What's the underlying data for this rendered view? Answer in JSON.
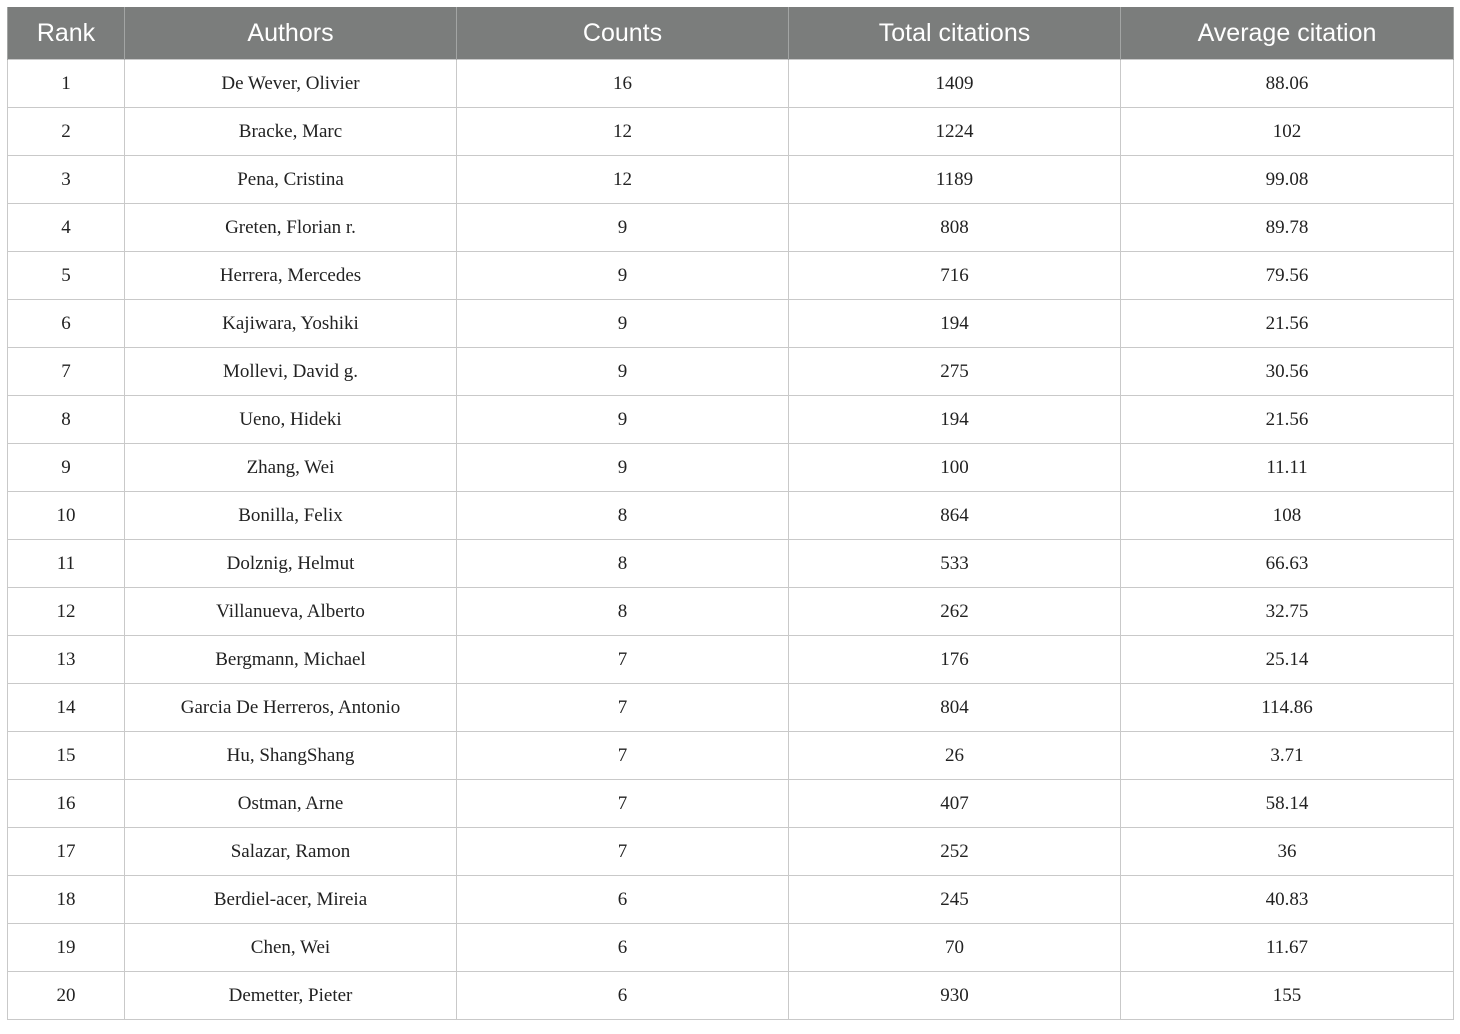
{
  "table": {
    "headers": [
      "Rank",
      "Authors",
      "Counts",
      "Total citations",
      "Average citation"
    ],
    "rows": [
      [
        "1",
        "De Wever, Olivier",
        "16",
        "1409",
        "88.06"
      ],
      [
        "2",
        "Bracke, Marc",
        "12",
        "1224",
        "102"
      ],
      [
        "3",
        "Pena, Cristina",
        "12",
        "1189",
        "99.08"
      ],
      [
        "4",
        "Greten, Florian r.",
        "9",
        "808",
        "89.78"
      ],
      [
        "5",
        "Herrera, Mercedes",
        "9",
        "716",
        "79.56"
      ],
      [
        "6",
        "Kajiwara, Yoshiki",
        "9",
        "194",
        "21.56"
      ],
      [
        "7",
        "Mollevi, David g.",
        "9",
        "275",
        "30.56"
      ],
      [
        "8",
        "Ueno, Hideki",
        "9",
        "194",
        "21.56"
      ],
      [
        "9",
        "Zhang, Wei",
        "9",
        "100",
        "11.11"
      ],
      [
        "10",
        "Bonilla, Felix",
        "8",
        "864",
        "108"
      ],
      [
        "11",
        "Dolznig, Helmut",
        "8",
        "533",
        "66.63"
      ],
      [
        "12",
        "Villanueva, Alberto",
        "8",
        "262",
        "32.75"
      ],
      [
        "13",
        "Bergmann, Michael",
        "7",
        "176",
        "25.14"
      ],
      [
        "14",
        "Garcia De Herreros, Antonio",
        "7",
        "804",
        "114.86"
      ],
      [
        "15",
        "Hu, ShangShang",
        "7",
        "26",
        "3.71"
      ],
      [
        "16",
        "Ostman, Arne",
        "7",
        "407",
        "58.14"
      ],
      [
        "17",
        "Salazar, Ramon",
        "7",
        "252",
        "36"
      ],
      [
        "18",
        "Berdiel-acer, Mireia",
        "6",
        "245",
        "40.83"
      ],
      [
        "19",
        "Chen, Wei",
        "6",
        "70",
        "11.67"
      ],
      [
        "20",
        "Demetter, Pieter",
        "6",
        "930",
        "155"
      ]
    ]
  },
  "colors": {
    "header_background": "#7b7d7c",
    "header_text": "#ffffff",
    "grid_line": "#c9c9c9"
  }
}
